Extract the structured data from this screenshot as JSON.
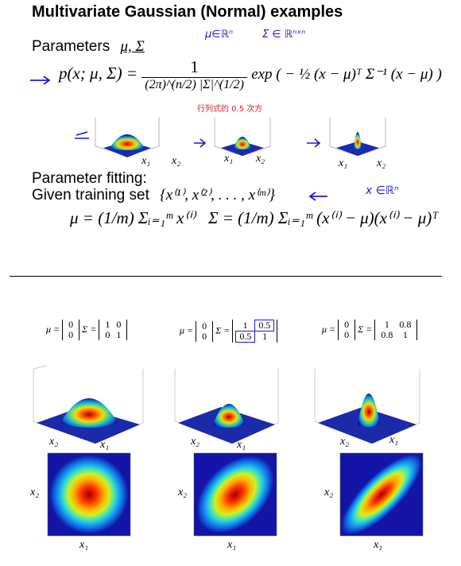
{
  "title": "Multivariate Gaussian (Normal) examples",
  "parameters": {
    "label": "Parameters",
    "symbols": "μ, Σ",
    "hand_mu": "μ∈ℝⁿ",
    "hand_sigma": "Σ ∈ ℝⁿˣⁿ"
  },
  "density": {
    "lhs": "p(x; μ, Σ) =",
    "numerator": "1",
    "denominator": "(2π)^(n/2) |Σ|^(1/2)",
    "exp_part": "exp ( − ½ (x − μ)ᵀ Σ⁻¹ (x − μ) )",
    "note": "行列式的 0.5 次方"
  },
  "fitting": {
    "heading": "Parameter fitting:",
    "given": "Given training set",
    "set": "{x⁽¹⁾, x⁽²⁾, . . . , x⁽ᵐ⁾}",
    "hand_x": "x ∈ℝⁿ",
    "mu_formula": "μ = (1/m) Σᵢ₌₁ᵐ x⁽ⁱ⁾",
    "sigma_formula": "Σ = (1/m) Σᵢ₌₁ᵐ (x⁽ⁱ⁾ − μ)(x⁽ⁱ⁾ − μ)ᵀ"
  },
  "top_plots": {
    "axis_x1": "x₁",
    "axis_x2": "x₂"
  },
  "examples": [
    {
      "mu": [
        "0",
        "0"
      ],
      "sigma": [
        [
          "1",
          "0"
        ],
        [
          "0",
          "1"
        ]
      ],
      "x1": "x₁",
      "x2": "x₂"
    },
    {
      "mu": [
        "0",
        "0"
      ],
      "sigma": [
        [
          "1",
          "0.5"
        ],
        [
          "0.5",
          "1"
        ]
      ],
      "x1": "x₁",
      "x2": "x₂"
    },
    {
      "mu": [
        "0",
        "0"
      ],
      "sigma": [
        [
          "1",
          "0.8"
        ],
        [
          "0.8",
          "1"
        ]
      ],
      "x1": "x₁",
      "x2": "x₂"
    }
  ],
  "colors": {
    "handwriting": "#1a1ad0",
    "note": "#dd2222"
  }
}
